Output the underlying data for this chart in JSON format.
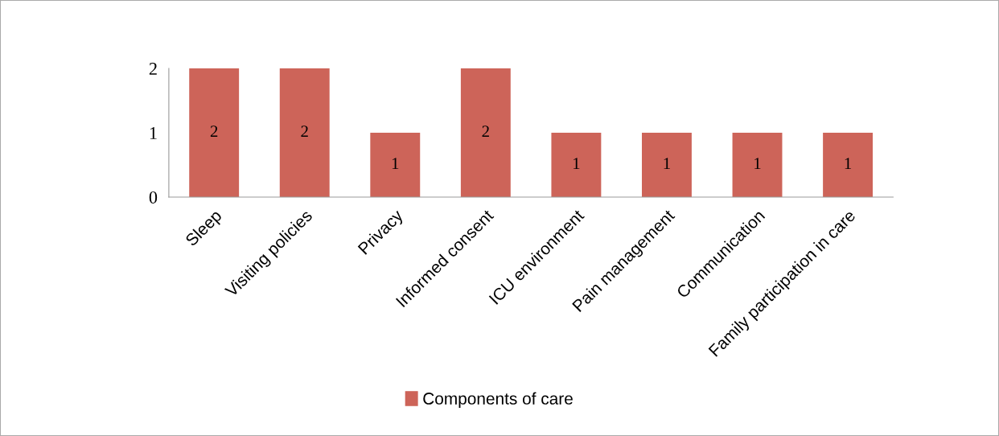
{
  "chart_data": {
    "type": "bar",
    "categories": [
      "Sleep",
      "Visiting policies",
      "Privacy",
      "Informed consent",
      "ICU environment",
      "Pain management",
      "Communication",
      "Family participation in care"
    ],
    "series": [
      {
        "name": "Components of care",
        "color": "#cd6459",
        "values": [
          2,
          2,
          1,
          2,
          1,
          1,
          1,
          1
        ]
      }
    ],
    "ylim": [
      0,
      2
    ],
    "yticks": [
      0,
      1,
      2
    ],
    "data_labels": true,
    "grid": false,
    "legend": "bottom"
  }
}
